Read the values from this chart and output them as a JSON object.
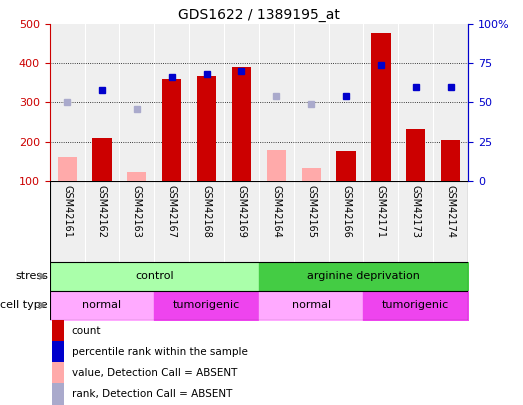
{
  "title": "GDS1622 / 1389195_at",
  "samples": [
    "GSM42161",
    "GSM42162",
    "GSM42163",
    "GSM42167",
    "GSM42168",
    "GSM42169",
    "GSM42164",
    "GSM42165",
    "GSM42166",
    "GSM42171",
    "GSM42173",
    "GSM42174"
  ],
  "count_values": [
    null,
    210,
    null,
    360,
    368,
    390,
    null,
    null,
    177,
    478,
    232,
    204
  ],
  "count_absent_values": [
    160,
    null,
    122,
    null,
    null,
    null,
    178,
    132,
    null,
    null,
    null,
    null
  ],
  "rank_values": [
    null,
    58,
    null,
    66,
    68,
    70,
    null,
    null,
    54,
    74,
    60,
    60
  ],
  "rank_absent_values": [
    50,
    null,
    46,
    null,
    null,
    null,
    54,
    49,
    null,
    null,
    null,
    null
  ],
  "ylim_left": [
    100,
    500
  ],
  "ylim_right": [
    0,
    100
  ],
  "left_ticks": [
    100,
    200,
    300,
    400,
    500
  ],
  "right_ticks": [
    0,
    25,
    50,
    75,
    100
  ],
  "right_tick_labels": [
    "0",
    "25",
    "50",
    "75",
    "100%"
  ],
  "color_count": "#cc0000",
  "color_rank": "#0000cc",
  "color_count_absent": "#ffaaaa",
  "color_rank_absent": "#aaaacc",
  "color_light_green": "#aaffaa",
  "color_green": "#44cc44",
  "color_pink_light": "#ffaaff",
  "color_magenta": "#ee44ee",
  "stress_label": "stress",
  "cell_type_label": "cell type",
  "legend_items": [
    {
      "label": "count",
      "color": "#cc0000"
    },
    {
      "label": "percentile rank within the sample",
      "color": "#0000cc"
    },
    {
      "label": "value, Detection Call = ABSENT",
      "color": "#ffaaaa"
    },
    {
      "label": "rank, Detection Call = ABSENT",
      "color": "#aaaacc"
    }
  ],
  "col_bg_color": "#d8d8d8",
  "plot_bg_color": "#ffffff"
}
